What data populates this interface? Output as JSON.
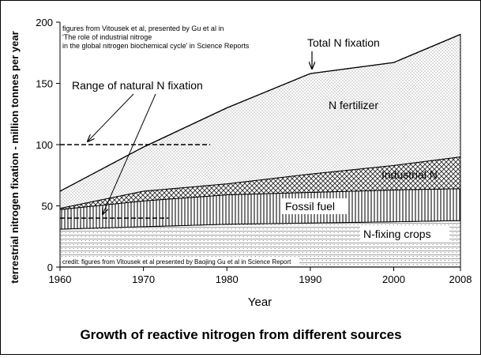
{
  "chart_data": {
    "type": "area",
    "title": "Growth of reactive nitrogen from different sources",
    "xlabel": "Year",
    "ylabel": "terrestrial nitrogen fixation - million tonnes per year",
    "x": [
      1960,
      1970,
      1980,
      1990,
      2000,
      2008
    ],
    "xlim": [
      1960,
      2008
    ],
    "ylim": [
      0,
      200
    ],
    "x_ticks": [
      1960,
      1970,
      1980,
      1990,
      2000,
      2008
    ],
    "y_ticks": [
      0,
      50,
      100,
      150,
      200
    ],
    "stacked": true,
    "series": [
      {
        "name": "N-fixing crops",
        "values": [
          31,
          33,
          35,
          36,
          37,
          38
        ]
      },
      {
        "name": "Fossil fuel",
        "values": [
          16,
          21,
          24,
          25,
          26,
          26
        ]
      },
      {
        "name": "Industrial N",
        "values": [
          1,
          8,
          9,
          15,
          20,
          26
        ]
      },
      {
        "name": "N fertilizer",
        "values": [
          14,
          36,
          62,
          82,
          84,
          100
        ]
      }
    ],
    "totals": [
      62,
      98,
      130,
      158,
      167,
      190
    ],
    "total_label": "Total N fixation",
    "natural_range": {
      "label": "Range of natural N fixation",
      "low": 40,
      "high": 100,
      "low_x_end": 1973,
      "high_x_end": 1978
    },
    "source_note": "figures from Vitousek et al, presented by Gu et al in 'The role of industrial nitrogen in the global nitrogen biochemical cycle' in Science Reports",
    "credit": "credit: figures from Vitousek et al presented by Baojing Gu et al in Science Report",
    "grid": false,
    "legend": "inline"
  }
}
